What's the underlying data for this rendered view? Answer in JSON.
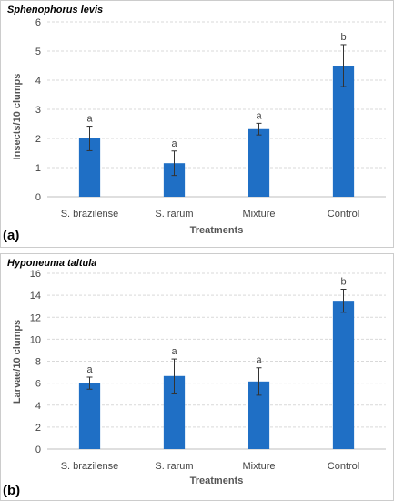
{
  "chart_data": [
    {
      "type": "bar",
      "panel_label": "(a)",
      "title": "Sphenophorus levis",
      "xlabel": "Treatments",
      "ylabel": "Insects/10 clumps",
      "ylim": [
        0,
        6
      ],
      "yticks": [
        0,
        1,
        2,
        3,
        4,
        5,
        6
      ],
      "grid": true,
      "categories": [
        "S. brazilense",
        "S. rarum",
        "Mixture",
        "Control"
      ],
      "values": [
        2.0,
        1.15,
        2.32,
        4.5
      ],
      "errors": [
        0.42,
        0.42,
        0.2,
        0.72
      ],
      "significance": [
        "a",
        "a",
        "a",
        "b"
      ],
      "bar_color": "#1f6fc5"
    },
    {
      "type": "bar",
      "panel_label": "(b)",
      "title": "Hyponeuma taltula",
      "xlabel": "Treatments",
      "ylabel": "Larvae/10 clumps",
      "ylim": [
        0,
        16
      ],
      "yticks": [
        0,
        2,
        4,
        6,
        8,
        10,
        12,
        14,
        16
      ],
      "grid": true,
      "categories": [
        "S. brazilense",
        "S. rarum",
        "Mixture",
        "Control"
      ],
      "values": [
        6.0,
        6.65,
        6.15,
        13.5
      ],
      "errors": [
        0.55,
        1.55,
        1.25,
        1.05
      ],
      "significance": [
        "a",
        "a",
        "a",
        "b"
      ],
      "bar_color": "#1f6fc5"
    }
  ]
}
